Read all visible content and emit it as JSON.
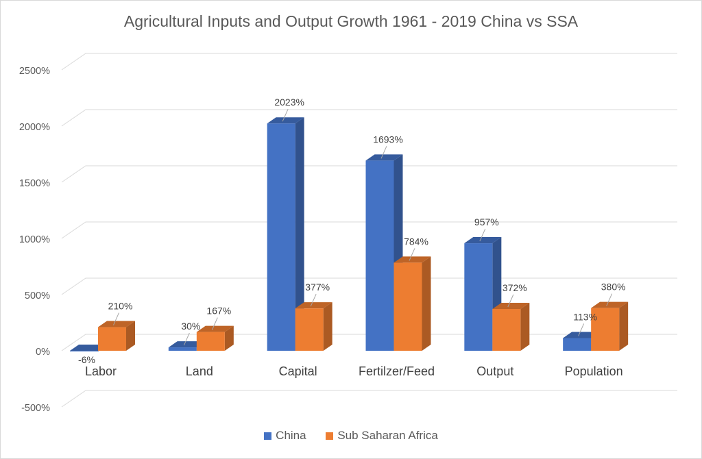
{
  "chart_data": {
    "type": "bar",
    "title": "Agricultural Inputs and Output Growth 1961 - 2019 China vs SSA",
    "categories": [
      "Labor",
      "Land",
      "Capital",
      "Fertilzer/Feed",
      "Output",
      "Population"
    ],
    "series": [
      {
        "name": "China",
        "values": [
          -6,
          30,
          2023,
          1693,
          957,
          113
        ],
        "labels": [
          "-6%",
          "30%",
          "2023%",
          "1693%",
          "957%",
          "113%"
        ],
        "color": "#4472c4"
      },
      {
        "name": "Sub Saharan Africa",
        "values": [
          210,
          167,
          377,
          784,
          372,
          380
        ],
        "labels": [
          "210%",
          "167%",
          "377%",
          "784%",
          "372%",
          "380%"
        ],
        "color": "#ed7d31"
      }
    ],
    "y_ticks": [
      {
        "value": 2500,
        "label": "2500%"
      },
      {
        "value": 2000,
        "label": "2000%"
      },
      {
        "value": 1500,
        "label": "1500%"
      },
      {
        "value": 1000,
        "label": "1000%"
      },
      {
        "value": 500,
        "label": "500%"
      },
      {
        "value": 0,
        "label": "0%"
      },
      {
        "value": -500,
        "label": "-500%"
      }
    ],
    "ylim": [
      -500,
      2500
    ],
    "grid": true,
    "legend_position": "bottom",
    "style": "3d-clustered-column"
  }
}
